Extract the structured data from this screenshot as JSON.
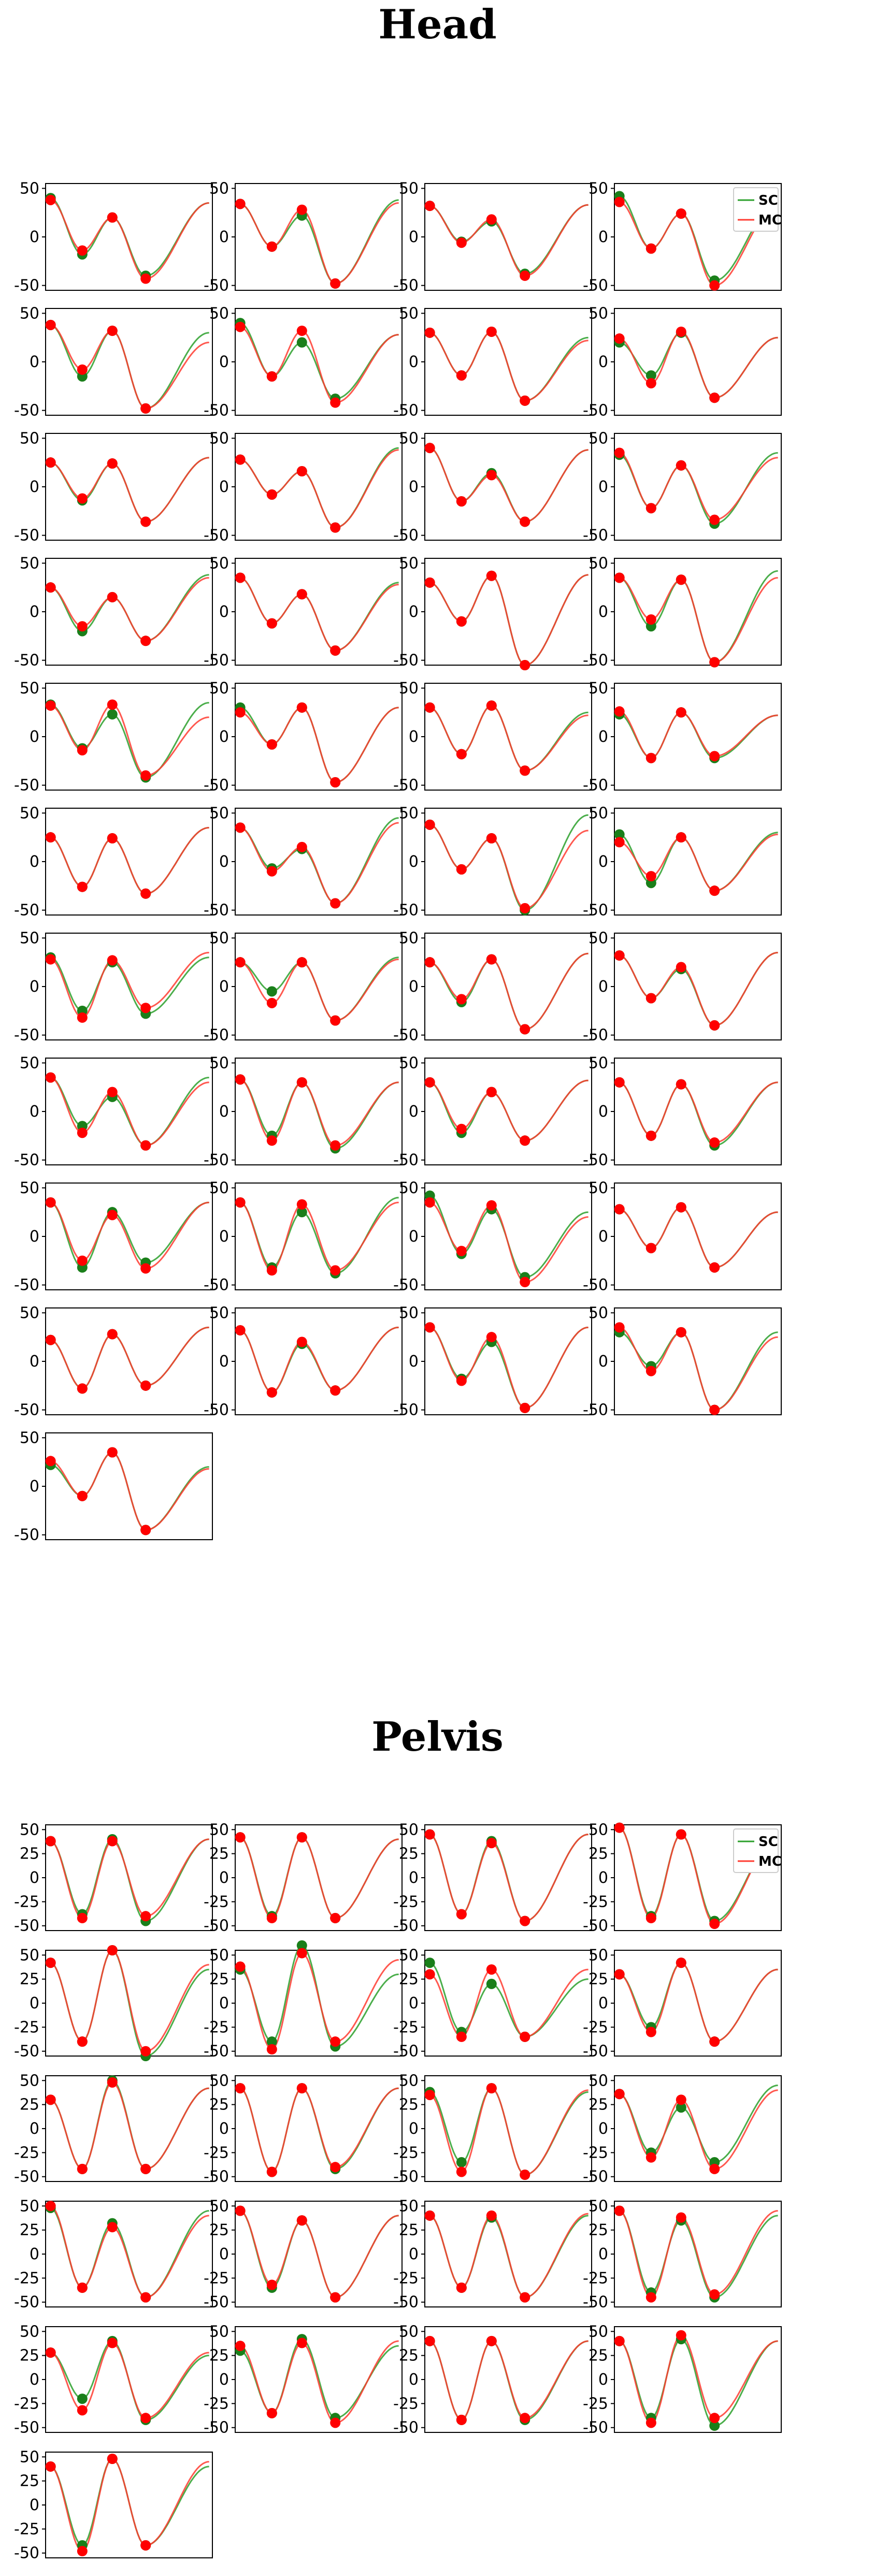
{
  "colors": {
    "sc": "#2ca02c",
    "mc": "#ff3b30",
    "sc_marker": "#1a7f1a",
    "mc_marker": "#ff0000"
  },
  "legend": {
    "sc_label": "SC",
    "mc_label": "MC"
  },
  "chart_data": [
    {
      "type": "line",
      "title": "Head",
      "ylim": [
        -55,
        55
      ],
      "yticks": [
        50,
        0,
        -50
      ],
      "grid": false,
      "legend_placement": "top-right of fourth panel",
      "series_names": [
        "SC",
        "MC"
      ],
      "panel_count": 41,
      "panels_note": "each panel: one gait cycle, peak-valley-peak-valley-end; values = [y0, valley1, peak2, valley2, y_end] in degrees",
      "panels": [
        {
          "sc": [
            40,
            -18,
            20,
            -40,
            35
          ],
          "mc": [
            38,
            -14,
            20,
            -43,
            35
          ]
        },
        {
          "sc": [
            34,
            -10,
            22,
            -48,
            38
          ],
          "mc": [
            34,
            -10,
            28,
            -48,
            35
          ]
        },
        {
          "sc": [
            32,
            -5,
            16,
            -38,
            33
          ],
          "mc": [
            32,
            -6,
            18,
            -40,
            33
          ]
        },
        {
          "sc": [
            42,
            -12,
            24,
            -45,
            35
          ],
          "mc": [
            36,
            -12,
            24,
            -50,
            32
          ]
        },
        {
          "sc": [
            38,
            -15,
            32,
            -48,
            30
          ],
          "mc": [
            38,
            -8,
            32,
            -48,
            20
          ]
        },
        {
          "sc": [
            40,
            -15,
            20,
            -38,
            28
          ],
          "mc": [
            36,
            -15,
            32,
            -42,
            28
          ]
        },
        {
          "sc": [
            30,
            -14,
            31,
            -40,
            25
          ],
          "mc": [
            30,
            -14,
            31,
            -40,
            22
          ]
        },
        {
          "sc": [
            20,
            -14,
            30,
            -37,
            25
          ],
          "mc": [
            24,
            -22,
            31,
            -37,
            25
          ]
        },
        {
          "sc": [
            25,
            -14,
            24,
            -36,
            30
          ],
          "mc": [
            25,
            -12,
            24,
            -36,
            30
          ]
        },
        {
          "sc": [
            28,
            -8,
            16,
            -42,
            40
          ],
          "mc": [
            28,
            -8,
            16,
            -42,
            38
          ]
        },
        {
          "sc": [
            40,
            -15,
            14,
            -36,
            38
          ],
          "mc": [
            40,
            -15,
            12,
            -36,
            38
          ]
        },
        {
          "sc": [
            33,
            -22,
            22,
            -38,
            35
          ],
          "mc": [
            35,
            -22,
            22,
            -34,
            30
          ]
        },
        {
          "sc": [
            25,
            -20,
            15,
            -30,
            38
          ],
          "mc": [
            25,
            -15,
            15,
            -30,
            35
          ]
        },
        {
          "sc": [
            35,
            -12,
            18,
            -40,
            30
          ],
          "mc": [
            35,
            -12,
            18,
            -40,
            28
          ]
        },
        {
          "sc": [
            30,
            -10,
            37,
            -55,
            38
          ],
          "mc": [
            30,
            -10,
            37,
            -55,
            38
          ]
        },
        {
          "sc": [
            35,
            -15,
            33,
            -52,
            42
          ],
          "mc": [
            35,
            -8,
            33,
            -52,
            35
          ]
        },
        {
          "sc": [
            33,
            -12,
            23,
            -42,
            35
          ],
          "mc": [
            32,
            -14,
            33,
            -40,
            20
          ]
        },
        {
          "sc": [
            30,
            -8,
            30,
            -47,
            30
          ],
          "mc": [
            25,
            -8,
            30,
            -47,
            30
          ]
        },
        {
          "sc": [
            30,
            -18,
            32,
            -35,
            25
          ],
          "mc": [
            30,
            -18,
            32,
            -35,
            22
          ]
        },
        {
          "sc": [
            23,
            -22,
            25,
            -22,
            22
          ],
          "mc": [
            26,
            -22,
            25,
            -20,
            22
          ]
        },
        {
          "sc": [
            25,
            -26,
            24,
            -33,
            35
          ],
          "mc": [
            25,
            -26,
            24,
            -33,
            35
          ]
        },
        {
          "sc": [
            35,
            -7,
            13,
            -43,
            45
          ],
          "mc": [
            35,
            -10,
            15,
            -43,
            40
          ]
        },
        {
          "sc": [
            38,
            -8,
            24,
            -50,
            48
          ],
          "mc": [
            38,
            -8,
            24,
            -48,
            32
          ]
        },
        {
          "sc": [
            28,
            -22,
            25,
            -30,
            30
          ],
          "mc": [
            20,
            -15,
            25,
            -30,
            28
          ]
        },
        {
          "sc": [
            30,
            -25,
            25,
            -28,
            30
          ],
          "mc": [
            28,
            -32,
            27,
            -22,
            35
          ]
        },
        {
          "sc": [
            25,
            -5,
            25,
            -35,
            30
          ],
          "mc": [
            25,
            -17,
            25,
            -35,
            28
          ]
        },
        {
          "sc": [
            25,
            -16,
            28,
            -44,
            34
          ],
          "mc": [
            25,
            -13,
            28,
            -44,
            34
          ]
        },
        {
          "sc": [
            32,
            -12,
            18,
            -40,
            35
          ],
          "mc": [
            32,
            -12,
            20,
            -40,
            35
          ]
        },
        {
          "sc": [
            35,
            -15,
            15,
            -35,
            35
          ],
          "mc": [
            35,
            -22,
            20,
            -35,
            30
          ]
        },
        {
          "sc": [
            33,
            -25,
            30,
            -38,
            30
          ],
          "mc": [
            33,
            -30,
            30,
            -35,
            30
          ]
        },
        {
          "sc": [
            30,
            -22,
            20,
            -30,
            32
          ],
          "mc": [
            30,
            -18,
            20,
            -30,
            32
          ]
        },
        {
          "sc": [
            30,
            -25,
            28,
            -35,
            30
          ],
          "mc": [
            30,
            -25,
            28,
            -32,
            30
          ]
        },
        {
          "sc": [
            35,
            -32,
            25,
            -27,
            35
          ],
          "mc": [
            35,
            -25,
            22,
            -33,
            35
          ]
        },
        {
          "sc": [
            35,
            -32,
            25,
            -38,
            40
          ],
          "mc": [
            35,
            -35,
            33,
            -35,
            35
          ]
        },
        {
          "sc": [
            42,
            -18,
            28,
            -42,
            25
          ],
          "mc": [
            35,
            -15,
            32,
            -47,
            20
          ]
        },
        {
          "sc": [
            28,
            -12,
            30,
            -32,
            25
          ],
          "mc": [
            28,
            -12,
            30,
            -32,
            25
          ]
        },
        {
          "sc": [
            22,
            -28,
            28,
            -25,
            35
          ],
          "mc": [
            22,
            -28,
            28,
            -25,
            35
          ]
        },
        {
          "sc": [
            32,
            -32,
            18,
            -30,
            35
          ],
          "mc": [
            32,
            -32,
            20,
            -30,
            35
          ]
        },
        {
          "sc": [
            35,
            -18,
            20,
            -48,
            35
          ],
          "mc": [
            35,
            -20,
            25,
            -48,
            35
          ]
        },
        {
          "sc": [
            30,
            -5,
            30,
            -50,
            30
          ],
          "mc": [
            35,
            -10,
            30,
            -50,
            25
          ]
        },
        {
          "sc": [
            22,
            -10,
            35,
            -45,
            20
          ],
          "mc": [
            26,
            -10,
            35,
            -45,
            18
          ]
        }
      ]
    },
    {
      "type": "line",
      "title": "Pelvis",
      "ylim": [
        -55,
        55
      ],
      "yticks": [
        50,
        25,
        0,
        -25,
        -50
      ],
      "grid": false,
      "legend_placement": "top-right of fourth panel",
      "series_names": [
        "SC",
        "MC"
      ],
      "panel_count": 21,
      "panels_note": "each panel: one gait cycle, peak-valley-peak-valley-end; values = [y0, valley1, peak2, valley2, y_end] in degrees",
      "panels": [
        {
          "sc": [
            38,
            -38,
            40,
            -45,
            40
          ],
          "mc": [
            38,
            -42,
            38,
            -40,
            40
          ]
        },
        {
          "sc": [
            42,
            -40,
            42,
            -42,
            40
          ],
          "mc": [
            42,
            -42,
            42,
            -42,
            40
          ]
        },
        {
          "sc": [
            45,
            -38,
            38,
            -45,
            45
          ],
          "mc": [
            45,
            -38,
            36,
            -45,
            45
          ]
        },
        {
          "sc": [
            52,
            -40,
            45,
            -45,
            40
          ],
          "mc": [
            52,
            -42,
            45,
            -48,
            40
          ]
        },
        {
          "sc": [
            42,
            -40,
            55,
            -55,
            35
          ],
          "mc": [
            42,
            -40,
            55,
            -50,
            40
          ]
        },
        {
          "sc": [
            35,
            -40,
            60,
            -45,
            30
          ],
          "mc": [
            38,
            -48,
            52,
            -40,
            45
          ]
        },
        {
          "sc": [
            42,
            -30,
            20,
            -35,
            25
          ],
          "mc": [
            30,
            -35,
            35,
            -35,
            35
          ]
        },
        {
          "sc": [
            30,
            -25,
            42,
            -40,
            35
          ],
          "mc": [
            30,
            -30,
            42,
            -40,
            35
          ]
        },
        {
          "sc": [
            30,
            -42,
            50,
            -42,
            42
          ],
          "mc": [
            30,
            -42,
            48,
            -42,
            42
          ]
        },
        {
          "sc": [
            42,
            -45,
            42,
            -42,
            42
          ],
          "mc": [
            42,
            -45,
            42,
            -40,
            42
          ]
        },
        {
          "sc": [
            38,
            -35,
            42,
            -48,
            38
          ],
          "mc": [
            35,
            -45,
            42,
            -48,
            40
          ]
        },
        {
          "sc": [
            36,
            -25,
            22,
            -35,
            45
          ],
          "mc": [
            36,
            -30,
            30,
            -42,
            40
          ]
        },
        {
          "sc": [
            48,
            -35,
            32,
            -45,
            45
          ],
          "mc": [
            50,
            -35,
            28,
            -45,
            40
          ]
        },
        {
          "sc": [
            45,
            -35,
            35,
            -45,
            40
          ],
          "mc": [
            45,
            -32,
            35,
            -45,
            40
          ]
        },
        {
          "sc": [
            40,
            -35,
            38,
            -45,
            40
          ],
          "mc": [
            40,
            -35,
            40,
            -45,
            42
          ]
        },
        {
          "sc": [
            45,
            -40,
            35,
            -45,
            40
          ],
          "mc": [
            45,
            -45,
            38,
            -42,
            45
          ]
        },
        {
          "sc": [
            28,
            -20,
            40,
            -42,
            25
          ],
          "mc": [
            28,
            -32,
            38,
            -40,
            28
          ]
        },
        {
          "sc": [
            30,
            -35,
            42,
            -40,
            35
          ],
          "mc": [
            35,
            -35,
            38,
            -45,
            40
          ]
        },
        {
          "sc": [
            40,
            -42,
            40,
            -42,
            40
          ],
          "mc": [
            40,
            -42,
            40,
            -40,
            40
          ]
        },
        {
          "sc": [
            40,
            -40,
            42,
            -48,
            40
          ],
          "mc": [
            40,
            -45,
            46,
            -40,
            40
          ]
        },
        {
          "sc": [
            40,
            -42,
            48,
            -42,
            40
          ],
          "mc": [
            40,
            -48,
            48,
            -42,
            45
          ]
        }
      ]
    }
  ],
  "titles": {
    "head": "Head",
    "pelvis": "Pelvis"
  }
}
